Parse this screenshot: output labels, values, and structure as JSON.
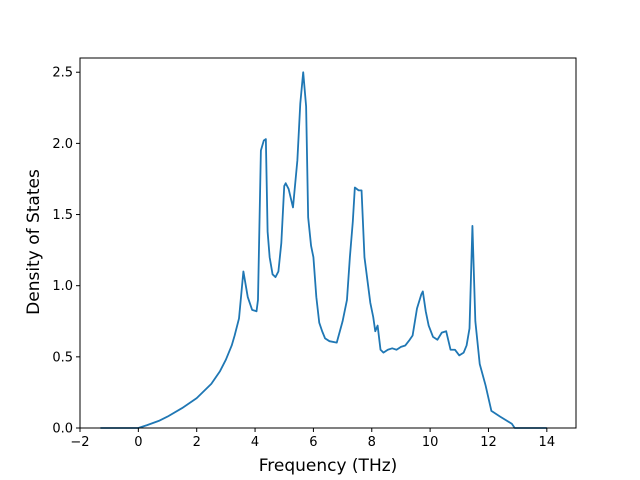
{
  "chart_data": {
    "type": "line",
    "title": "",
    "xlabel": "Frequency (THz)",
    "ylabel": "Density of States",
    "xlim": [
      -2.0,
      15.0
    ],
    "ylim": [
      0,
      2.6
    ],
    "x_ticks": [
      -2,
      0,
      2,
      4,
      6,
      8,
      10,
      12,
      14
    ],
    "x_tick_labels": [
      "−2",
      "0",
      "2",
      "4",
      "6",
      "8",
      "10",
      "12",
      "14"
    ],
    "y_ticks": [
      0.0,
      0.5,
      1.0,
      1.5,
      2.0,
      2.5
    ],
    "y_tick_labels": [
      "0.0",
      "0.5",
      "1.0",
      "1.5",
      "2.0",
      "2.5"
    ],
    "grid": false,
    "legend": "none",
    "series": [
      {
        "color": "#1f77b4",
        "x": [
          -1.3,
          -0.3,
          0.0,
          0.3,
          0.7,
          1.0,
          1.5,
          2.0,
          2.5,
          2.8,
          3.0,
          3.2,
          3.3,
          3.45,
          3.6,
          3.75,
          3.9,
          4.05,
          4.1,
          4.2,
          4.3,
          4.37,
          4.43,
          4.5,
          4.6,
          4.7,
          4.8,
          4.9,
          5.0,
          5.05,
          5.15,
          5.3,
          5.45,
          5.55,
          5.65,
          5.75,
          5.82,
          5.92,
          6.0,
          6.1,
          6.2,
          6.3,
          6.4,
          6.55,
          6.8,
          7.0,
          7.15,
          7.25,
          7.35,
          7.42,
          7.55,
          7.65,
          7.75,
          7.85,
          7.95,
          8.05,
          8.12,
          8.2,
          8.3,
          8.4,
          8.55,
          8.7,
          8.85,
          9.0,
          9.15,
          9.3,
          9.4,
          9.55,
          9.7,
          9.75,
          9.85,
          9.95,
          10.1,
          10.25,
          10.4,
          10.55,
          10.7,
          10.85,
          11.0,
          11.15,
          11.25,
          11.35,
          11.45,
          11.55,
          11.7,
          11.9,
          12.1,
          12.4,
          12.8,
          12.9,
          13.3,
          14.0
        ],
        "y": [
          0.0,
          0.0,
          0.0,
          0.02,
          0.05,
          0.08,
          0.14,
          0.21,
          0.31,
          0.4,
          0.48,
          0.58,
          0.65,
          0.77,
          1.1,
          0.92,
          0.83,
          0.82,
          0.9,
          1.95,
          2.02,
          2.03,
          1.38,
          1.2,
          1.08,
          1.06,
          1.1,
          1.3,
          1.7,
          1.72,
          1.68,
          1.55,
          1.88,
          2.28,
          2.5,
          2.26,
          1.48,
          1.28,
          1.2,
          0.92,
          0.74,
          0.68,
          0.63,
          0.61,
          0.6,
          0.75,
          0.9,
          1.2,
          1.45,
          1.69,
          1.67,
          1.67,
          1.2,
          1.04,
          0.88,
          0.78,
          0.68,
          0.72,
          0.55,
          0.53,
          0.55,
          0.56,
          0.55,
          0.57,
          0.58,
          0.62,
          0.65,
          0.84,
          0.94,
          0.96,
          0.82,
          0.72,
          0.64,
          0.62,
          0.67,
          0.68,
          0.55,
          0.55,
          0.51,
          0.53,
          0.58,
          0.7,
          1.42,
          0.75,
          0.45,
          0.3,
          0.12,
          0.08,
          0.03,
          0.0,
          0.0,
          0.0
        ]
      }
    ]
  }
}
